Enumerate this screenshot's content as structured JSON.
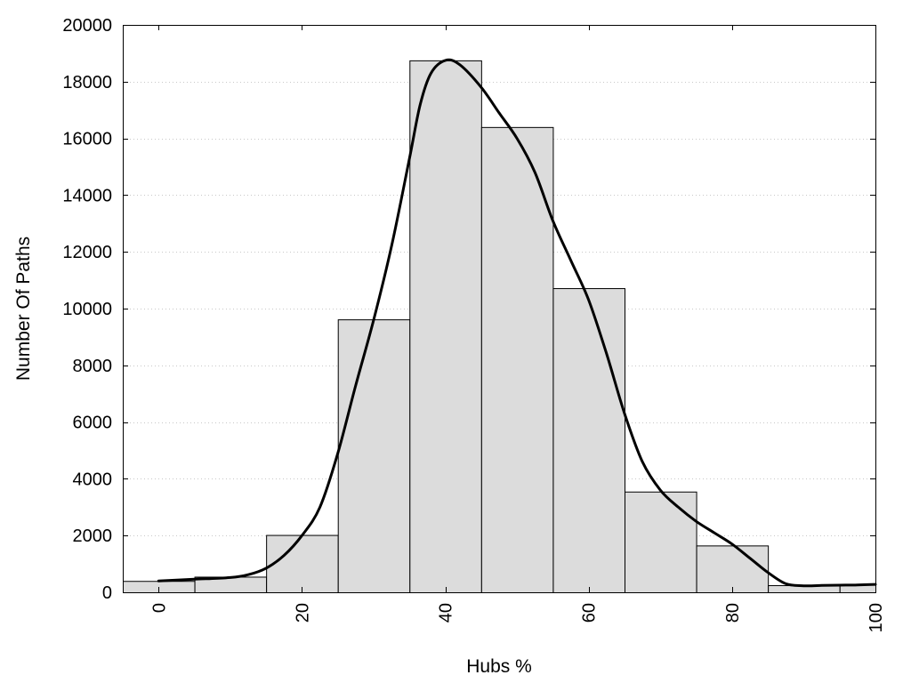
{
  "chart_data": {
    "type": "bar",
    "title": "",
    "xlabel": "Hubs %",
    "ylabel": "Number Of Paths",
    "xlim": [
      -5,
      100
    ],
    "ylim": [
      0,
      20000
    ],
    "grid": true,
    "bar_color": "#dcdcdc",
    "curve_color": "#000000",
    "x_ticks": [
      0,
      20,
      40,
      60,
      80,
      100
    ],
    "y_ticks": [
      0,
      2000,
      4000,
      6000,
      8000,
      10000,
      12000,
      14000,
      16000,
      18000,
      20000
    ],
    "bin_width": 10,
    "bins": [
      {
        "center": 0,
        "value": 400
      },
      {
        "center": 10,
        "value": 550
      },
      {
        "center": 20,
        "value": 2020
      },
      {
        "center": 30,
        "value": 9620
      },
      {
        "center": 40,
        "value": 18750
      },
      {
        "center": 50,
        "value": 16400
      },
      {
        "center": 60,
        "value": 10720
      },
      {
        "center": 70,
        "value": 3550
      },
      {
        "center": 80,
        "value": 1650
      },
      {
        "center": 90,
        "value": 250
      },
      {
        "center": 100,
        "value": 280
      }
    ],
    "curve": {
      "x": [
        0,
        5,
        10,
        12.5,
        15,
        17.5,
        20,
        22.5,
        25,
        27.5,
        30,
        32.5,
        35,
        36.5,
        38,
        40,
        42,
        45,
        47.5,
        50,
        52.5,
        55,
        57.5,
        60,
        62.5,
        65,
        67.5,
        70,
        72.5,
        75,
        77.5,
        80,
        82.5,
        85,
        87.5,
        90,
        92.5,
        95,
        97.5,
        100
      ],
      "y": [
        400,
        460,
        520,
        620,
        850,
        1300,
        2000,
        3000,
        4900,
        7300,
        9600,
        12200,
        15300,
        17200,
        18300,
        18750,
        18600,
        17800,
        16900,
        16000,
        14800,
        13100,
        11700,
        10300,
        8400,
        6300,
        4600,
        3600,
        3000,
        2500,
        2100,
        1700,
        1200,
        700,
        300,
        230,
        240,
        250,
        260,
        280
      ]
    }
  }
}
